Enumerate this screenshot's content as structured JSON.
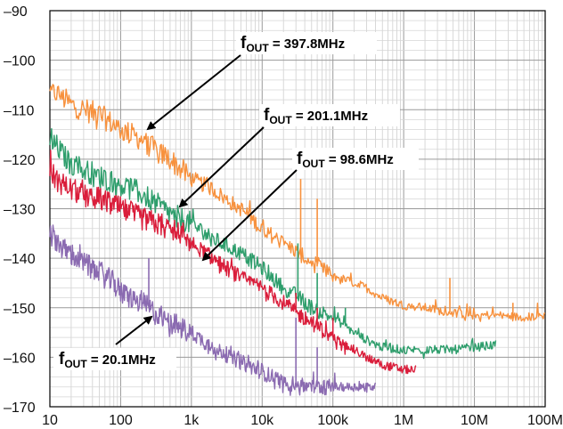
{
  "chart_data": {
    "type": "line",
    "x_scale": "log",
    "xlim": [
      10,
      100000000
    ],
    "ylim": [
      -170,
      -90
    ],
    "grid": true,
    "x_tick_labels": [
      "10",
      "100",
      "1k",
      "10k",
      "100k",
      "1M",
      "10M",
      "100M"
    ],
    "x_tick_values": [
      10,
      100,
      1000,
      10000,
      100000,
      1000000,
      10000000,
      100000000
    ],
    "y_tick_labels": [
      "–90",
      "–100",
      "–110",
      "–120",
      "–130",
      "–140",
      "–150",
      "–160",
      "–170"
    ],
    "y_tick_values": [
      -90,
      -100,
      -110,
      -120,
      -130,
      -140,
      -150,
      -160,
      -170
    ],
    "series": [
      {
        "color": "#f7913d",
        "annotation": {
          "f": "f",
          "sub": "OUT",
          "rest": " = 397.8MHz"
        },
        "points": [
          [
            10,
            -107
          ],
          [
            12,
            -106.5
          ],
          [
            15,
            -107.5
          ],
          [
            20,
            -109
          ],
          [
            30,
            -110
          ],
          [
            50,
            -111
          ],
          [
            80,
            -113
          ],
          [
            100,
            -114
          ],
          [
            200,
            -116
          ],
          [
            300,
            -118
          ],
          [
            500,
            -120
          ],
          [
            1000,
            -124
          ],
          [
            2000,
            -126
          ],
          [
            3000,
            -128
          ],
          [
            5000,
            -130
          ],
          [
            10000,
            -134
          ],
          [
            20000,
            -137
          ],
          [
            30000,
            -138.5
          ],
          [
            50000,
            -141
          ],
          [
            100000,
            -143.5
          ],
          [
            200000,
            -145
          ],
          [
            300000,
            -146
          ],
          [
            500000,
            -148
          ],
          [
            1000000,
            -149.5
          ],
          [
            2000000,
            -150
          ],
          [
            3000000,
            -150.5
          ],
          [
            5000000,
            -151
          ],
          [
            10000000,
            -151.5
          ],
          [
            20000000,
            -151.5
          ],
          [
            50000000,
            -152
          ],
          [
            100000000,
            -151.5
          ]
        ],
        "spurs": [
          [
            35000,
            -124
          ],
          [
            60000,
            -128
          ],
          [
            4500000,
            -144
          ],
          [
            35000000,
            -149
          ]
        ]
      },
      {
        "color": "#2e9e6c",
        "annotation": {
          "f": "f",
          "sub": "OUT",
          "rest": " = 201.1MHz"
        },
        "points": [
          [
            10,
            -115
          ],
          [
            12,
            -117
          ],
          [
            15,
            -119
          ],
          [
            20,
            -121
          ],
          [
            30,
            -122
          ],
          [
            50,
            -123.5
          ],
          [
            100,
            -125
          ],
          [
            200,
            -127
          ],
          [
            500,
            -131
          ],
          [
            1000,
            -133
          ],
          [
            2000,
            -136
          ],
          [
            5000,
            -139
          ],
          [
            10000,
            -142
          ],
          [
            20000,
            -146
          ],
          [
            30000,
            -147.5
          ],
          [
            50000,
            -150
          ],
          [
            100000,
            -152
          ],
          [
            200000,
            -155
          ],
          [
            300000,
            -156.5
          ],
          [
            500000,
            -158
          ],
          [
            1000000,
            -158.5
          ],
          [
            2000000,
            -158.5
          ],
          [
            5000000,
            -158.5
          ],
          [
            10000000,
            -158
          ],
          [
            20000000,
            -157.5
          ]
        ],
        "spurs": [
          [
            32000,
            -137
          ],
          [
            60000,
            -143
          ],
          [
            150000,
            -150
          ]
        ]
      },
      {
        "color": "#da1e3b",
        "annotation": {
          "f": "f",
          "sub": "OUT",
          "rest": " = 98.6MHz"
        },
        "points": [
          [
            10,
            -122
          ],
          [
            12,
            -124
          ],
          [
            15,
            -125
          ],
          [
            20,
            -126
          ],
          [
            30,
            -127.5
          ],
          [
            50,
            -128
          ],
          [
            100,
            -130
          ],
          [
            200,
            -132
          ],
          [
            500,
            -134
          ],
          [
            1000,
            -137
          ],
          [
            2000,
            -140
          ],
          [
            5000,
            -144
          ],
          [
            10000,
            -146
          ],
          [
            20000,
            -149
          ],
          [
            30000,
            -151
          ],
          [
            50000,
            -153
          ],
          [
            100000,
            -156
          ],
          [
            200000,
            -158.5
          ],
          [
            300000,
            -160
          ],
          [
            500000,
            -161.5
          ],
          [
            1000000,
            -162.5
          ],
          [
            1500000,
            -162.5
          ]
        ],
        "spurs": [
          [
            30000,
            -147
          ],
          [
            60000,
            -150
          ],
          [
            100000,
            -152
          ]
        ]
      },
      {
        "color": "#8b6bb1",
        "annotation": {
          "f": "f",
          "sub": "OUT",
          "rest": " = 20.1MHz"
        },
        "points": [
          [
            10,
            -135
          ],
          [
            12,
            -136
          ],
          [
            15,
            -138
          ],
          [
            20,
            -139
          ],
          [
            30,
            -141
          ],
          [
            50,
            -143
          ],
          [
            80,
            -145
          ],
          [
            100,
            -147
          ],
          [
            200,
            -149
          ],
          [
            300,
            -151
          ],
          [
            500,
            -153
          ],
          [
            1000,
            -155
          ],
          [
            2000,
            -158
          ],
          [
            5000,
            -161
          ],
          [
            10000,
            -163
          ],
          [
            20000,
            -165
          ],
          [
            30000,
            -165.5
          ],
          [
            50000,
            -166
          ],
          [
            100000,
            -166
          ],
          [
            200000,
            -166
          ],
          [
            400000,
            -166
          ]
        ],
        "spurs": [
          [
            250,
            -140
          ],
          [
            30000,
            -152
          ],
          [
            60000,
            -158
          ]
        ]
      }
    ]
  }
}
